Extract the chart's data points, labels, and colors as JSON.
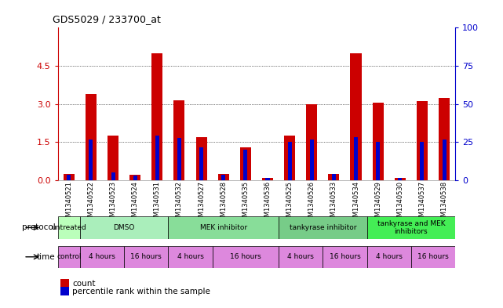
{
  "title": "GDS5029 / 233700_at",
  "samples": [
    "GSM1340521",
    "GSM1340522",
    "GSM1340523",
    "GSM1340524",
    "GSM1340531",
    "GSM1340532",
    "GSM1340527",
    "GSM1340528",
    "GSM1340535",
    "GSM1340536",
    "GSM1340525",
    "GSM1340526",
    "GSM1340533",
    "GSM1340534",
    "GSM1340529",
    "GSM1340530",
    "GSM1340537",
    "GSM1340538"
  ],
  "red_values": [
    0.25,
    3.4,
    1.75,
    0.2,
    5.0,
    3.15,
    1.7,
    0.25,
    1.3,
    0.1,
    1.75,
    3.0,
    0.25,
    5.0,
    3.05,
    0.1,
    3.1,
    3.25
  ],
  "blue_percent": [
    3.6,
    26.7,
    5.0,
    2.8,
    29.2,
    27.5,
    21.7,
    3.6,
    20.0,
    1.3,
    25.0,
    26.7,
    4.2,
    28.3,
    25.0,
    1.3,
    25.0,
    26.7
  ],
  "ylim_left": [
    0,
    6
  ],
  "ylim_right": [
    0,
    100
  ],
  "yticks_left": [
    0,
    1.5,
    3.0,
    4.5
  ],
  "yticks_right": [
    0,
    25,
    50,
    75,
    100
  ],
  "red_color": "#cc0000",
  "blue_color": "#0000cc",
  "protocol_rows": [
    {
      "label": "untreated",
      "start": 0,
      "end": 1,
      "color": "#bbffbb"
    },
    {
      "label": "DMSO",
      "start": 1,
      "end": 5,
      "color": "#aaeebb"
    },
    {
      "label": "MEK inhibitor",
      "start": 5,
      "end": 10,
      "color": "#88dd99"
    },
    {
      "label": "tankyrase inhibitor",
      "start": 10,
      "end": 14,
      "color": "#77cc88"
    },
    {
      "label": "tankyrase and MEK\ninhibitors",
      "start": 14,
      "end": 18,
      "color": "#44ee55"
    }
  ],
  "time_rows": [
    {
      "label": "control",
      "start": 0,
      "end": 1
    },
    {
      "label": "4 hours",
      "start": 1,
      "end": 3
    },
    {
      "label": "16 hours",
      "start": 3,
      "end": 5
    },
    {
      "label": "4 hours",
      "start": 5,
      "end": 7
    },
    {
      "label": "16 hours",
      "start": 7,
      "end": 10
    },
    {
      "label": "4 hours",
      "start": 10,
      "end": 12
    },
    {
      "label": "16 hours",
      "start": 12,
      "end": 14
    },
    {
      "label": "4 hours",
      "start": 14,
      "end": 16
    },
    {
      "label": "16 hours",
      "start": 16,
      "end": 18
    }
  ],
  "time_color": "#dd88dd",
  "bg_color": "#ffffff",
  "red_bar_width": 0.5,
  "blue_bar_width": 0.18
}
